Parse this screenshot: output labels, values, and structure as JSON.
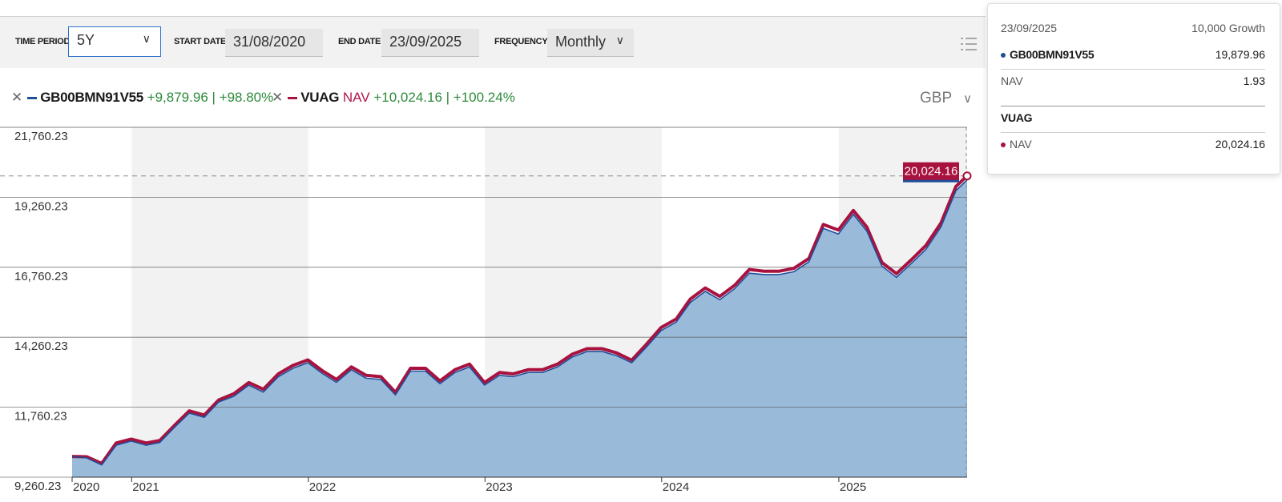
{
  "toolbar": {
    "time_period_label": "TIME PERIOD",
    "time_period_value": "5Y",
    "start_date_label": "START DATE",
    "start_date_value": "31/08/2020",
    "end_date_label": "END DATE",
    "end_date_value": "23/09/2025",
    "frequency_label": "FREQUENCY",
    "frequency_value": "Monthly"
  },
  "legend": {
    "series1": {
      "name": "GB00BMN91V55",
      "change": "+9,879.96",
      "sep": "|",
      "pct": "+98.80%",
      "color": "#1f4e9a"
    },
    "series2": {
      "name": "VUAG",
      "type": "NAV",
      "change": "+10,024.16",
      "sep": "|",
      "pct": "+100.24%",
      "color": "#a8123e"
    }
  },
  "currency": "GBP",
  "tooltip": {
    "date": "23/09/2025",
    "header_right": "10,000 Growth",
    "s1_name": "GB00BMN91V55",
    "s1_value": "19,879.96",
    "s1_nav_label": "NAV",
    "s1_nav_value": "1.93",
    "s2_name": "VUAG",
    "s2_nav_label": "NAV",
    "s2_nav_value": "20,024.16"
  },
  "chart_data": {
    "type": "area",
    "ylim": [
      9260.23,
      21760.23
    ],
    "y_ticks": [
      "21,760.23",
      "19,260.23",
      "16,760.23",
      "14,260.23",
      "11,760.23",
      "9,260.23"
    ],
    "y_tick_values": [
      21760.23,
      19260.23,
      16760.23,
      14260.23,
      11760.23,
      9260.23
    ],
    "x_labels": [
      "2020",
      "2021",
      "2022",
      "2023",
      "2024",
      "2025"
    ],
    "x_label_dates": [
      "2020-08-31",
      "2021-01-01",
      "2022-01-01",
      "2023-01-01",
      "2024-01-01",
      "2025-01-01"
    ],
    "x_range": [
      "2020-08-31",
      "2025-09-23"
    ],
    "reference_line": 20024.16,
    "end_label": "20,024.16",
    "fill_color": "#95b6d8",
    "shade_color": "#f2f2f2",
    "x": [
      "2020-08-31",
      "2020-09-30",
      "2020-10-31",
      "2020-11-30",
      "2020-12-31",
      "2021-01-31",
      "2021-02-28",
      "2021-03-31",
      "2021-04-30",
      "2021-05-31",
      "2021-06-30",
      "2021-07-31",
      "2021-08-31",
      "2021-09-30",
      "2021-10-31",
      "2021-11-30",
      "2021-12-31",
      "2022-01-31",
      "2022-02-28",
      "2022-03-31",
      "2022-04-30",
      "2022-05-31",
      "2022-06-30",
      "2022-07-31",
      "2022-08-31",
      "2022-09-30",
      "2022-10-31",
      "2022-11-30",
      "2022-12-31",
      "2023-01-31",
      "2023-02-28",
      "2023-03-31",
      "2023-04-30",
      "2023-05-31",
      "2023-06-30",
      "2023-07-31",
      "2023-08-31",
      "2023-09-30",
      "2023-10-31",
      "2023-11-30",
      "2023-12-31",
      "2024-01-31",
      "2024-02-29",
      "2024-03-31",
      "2024-04-30",
      "2024-05-31",
      "2024-06-30",
      "2024-07-31",
      "2024-08-31",
      "2024-09-30",
      "2024-10-31",
      "2024-11-30",
      "2024-12-31",
      "2025-01-31",
      "2025-02-28",
      "2025-03-31",
      "2025-04-30",
      "2025-05-31",
      "2025-06-30",
      "2025-07-31",
      "2025-08-31",
      "2025-09-23"
    ],
    "series": [
      {
        "name": "GB00BMN91V55",
        "values": [
          10000,
          9950,
          9700,
          10400,
          10550,
          10400,
          10500,
          11050,
          11550,
          11400,
          11950,
          12150,
          12550,
          12300,
          12850,
          13150,
          13350,
          12950,
          12650,
          13100,
          12800,
          12750,
          12200,
          13050,
          13050,
          12600,
          13000,
          13200,
          12550,
          12900,
          12850,
          13000,
          13000,
          13200,
          13550,
          13750,
          13750,
          13600,
          13350,
          13900,
          14500,
          14800,
          15500,
          15900,
          15600,
          16000,
          16550,
          16500,
          16500,
          16600,
          16950,
          18150,
          17950,
          18650,
          18050,
          16800,
          16400,
          16900,
          17400,
          18200,
          19500,
          19879.96
        ]
      },
      {
        "name": "VUAG",
        "type": "NAV",
        "values": [
          10000,
          9990,
          9750,
          10480,
          10620,
          10480,
          10570,
          11120,
          11630,
          11480,
          12020,
          12240,
          12640,
          12400,
          12950,
          13250,
          13450,
          13050,
          12750,
          13200,
          12900,
          12850,
          12290,
          13150,
          13150,
          12700,
          13100,
          13300,
          12640,
          13000,
          12950,
          13100,
          13100,
          13300,
          13650,
          13850,
          13850,
          13700,
          13440,
          14000,
          14610,
          14910,
          15620,
          16020,
          15720,
          16120,
          16680,
          16620,
          16620,
          16720,
          17070,
          18290,
          18090,
          18790,
          18190,
          16930,
          16530,
          17030,
          17540,
          18340,
          19650,
          20024.16
        ]
      }
    ]
  }
}
